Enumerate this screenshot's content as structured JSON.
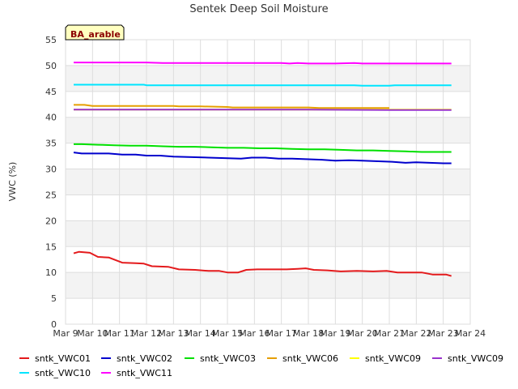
{
  "chart_data": {
    "type": "line",
    "title": "Sentek Deep Soil Moisture",
    "ylabel": "VWC (%)",
    "xlabel": "",
    "site_label": "BA_arable",
    "ylim": [
      0,
      55
    ],
    "yticks": [
      0,
      5,
      10,
      15,
      20,
      25,
      30,
      35,
      40,
      45,
      50,
      55
    ],
    "xlim": [
      9,
      24
    ],
    "xticks": [
      {
        "value": 9,
        "label": "Mar 9"
      },
      {
        "value": 10,
        "label": "Mar 10"
      },
      {
        "value": 11,
        "label": "Mar 11"
      },
      {
        "value": 12,
        "label": "Mar 12"
      },
      {
        "value": 13,
        "label": "Mar 13"
      },
      {
        "value": 14,
        "label": "Mar 14"
      },
      {
        "value": 15,
        "label": "Mar 15"
      },
      {
        "value": 16,
        "label": "Mar 16"
      },
      {
        "value": 17,
        "label": "Mar 17"
      },
      {
        "value": 18,
        "label": "Mar 18"
      },
      {
        "value": 19,
        "label": "Mar 19"
      },
      {
        "value": 20,
        "label": "Mar 20"
      },
      {
        "value": 21,
        "label": "Mar 21"
      },
      {
        "value": 22,
        "label": "Mar 22"
      },
      {
        "value": 23,
        "label": "Mar 23"
      },
      {
        "value": 24,
        "label": "Mar 24"
      }
    ],
    "grid": true,
    "legend_position": "bottom",
    "series": [
      {
        "name": "sntk_VWC01",
        "color": "#e41a1c",
        "x": [
          9.3,
          9.5,
          9.9,
          10.2,
          10.6,
          11.1,
          11.6,
          11.9,
          12.2,
          12.8,
          13.2,
          13.8,
          14.3,
          14.7,
          15.0,
          15.4,
          15.7,
          16.1,
          16.5,
          17.2,
          17.6,
          17.9,
          18.2,
          18.7,
          19.2,
          19.8,
          20.4,
          20.9,
          21.3,
          21.8,
          22.2,
          22.6,
          23.1,
          23.3
        ],
        "y": [
          13.7,
          14.0,
          13.8,
          13.0,
          12.9,
          11.9,
          11.8,
          11.7,
          11.2,
          11.1,
          10.6,
          10.5,
          10.3,
          10.3,
          10.0,
          10.0,
          10.5,
          10.6,
          10.6,
          10.6,
          10.7,
          10.8,
          10.5,
          10.4,
          10.2,
          10.3,
          10.2,
          10.3,
          10.0,
          10.0,
          10.0,
          9.6,
          9.6,
          9.3
        ]
      },
      {
        "name": "sntk_VWC02",
        "color": "#0000cd",
        "x": [
          9.3,
          9.6,
          10.0,
          10.6,
          11.1,
          11.6,
          12.0,
          12.5,
          13.0,
          13.7,
          14.3,
          14.9,
          15.5,
          15.9,
          16.4,
          16.9,
          17.4,
          17.9,
          18.5,
          19.0,
          19.5,
          20.0,
          20.6,
          21.1,
          21.6,
          22.0,
          22.5,
          23.0,
          23.3
        ],
        "y": [
          33.2,
          33.0,
          33.0,
          33.0,
          32.8,
          32.8,
          32.6,
          32.6,
          32.4,
          32.3,
          32.2,
          32.1,
          32.0,
          32.2,
          32.2,
          32.0,
          32.0,
          31.9,
          31.8,
          31.6,
          31.7,
          31.6,
          31.5,
          31.4,
          31.2,
          31.3,
          31.2,
          31.1,
          31.1
        ]
      },
      {
        "name": "sntk_VWC03",
        "color": "#00e000",
        "x": [
          9.3,
          9.6,
          10.2,
          10.8,
          11.4,
          12.0,
          12.6,
          13.2,
          13.8,
          14.4,
          15.0,
          15.6,
          16.2,
          16.8,
          17.4,
          18.0,
          18.6,
          19.2,
          19.8,
          20.4,
          21.0,
          21.6,
          22.2,
          22.8,
          23.3
        ],
        "y": [
          34.8,
          34.8,
          34.7,
          34.6,
          34.5,
          34.5,
          34.4,
          34.3,
          34.3,
          34.2,
          34.1,
          34.1,
          34.0,
          34.0,
          33.9,
          33.8,
          33.8,
          33.7,
          33.6,
          33.6,
          33.5,
          33.4,
          33.3,
          33.3,
          33.3
        ]
      },
      {
        "name": "sntk_VWC06",
        "color": "#e69f00",
        "x": [
          9.3,
          9.7,
          10.0,
          11.0,
          12.0,
          13.0,
          13.2,
          14.0,
          15.0,
          15.2,
          16.0,
          17.0,
          18.0,
          18.4,
          19.0,
          20.0,
          21.0
        ],
        "y": [
          42.4,
          42.4,
          42.2,
          42.2,
          42.2,
          42.2,
          42.1,
          42.1,
          42.0,
          41.9,
          41.9,
          41.9,
          41.9,
          41.8,
          41.8,
          41.8,
          41.8
        ]
      },
      {
        "name": "sntk_VWC09",
        "color": "#ffff00",
        "x": [
          9.3,
          12.0,
          15.0,
          18.0,
          21.0,
          23.3
        ],
        "y": [
          41.5,
          41.5,
          41.5,
          41.5,
          41.5,
          41.5
        ]
      },
      {
        "name": "sntk_VWC09",
        "color": "#9932cc",
        "x": [
          9.3,
          12.0,
          15.0,
          18.0,
          21.0,
          23.3
        ],
        "y": [
          41.5,
          41.5,
          41.5,
          41.5,
          41.4,
          41.4
        ]
      },
      {
        "name": "sntk_VWC10",
        "color": "#00e5ff",
        "x": [
          9.3,
          10.0,
          11.0,
          11.9,
          12.0,
          13.0,
          14.0,
          15.0,
          16.0,
          17.0,
          18.0,
          19.0,
          19.7,
          20.0,
          21.0,
          21.2,
          22.0,
          23.3
        ],
        "y": [
          46.3,
          46.3,
          46.3,
          46.3,
          46.2,
          46.2,
          46.2,
          46.2,
          46.2,
          46.2,
          46.2,
          46.2,
          46.2,
          46.1,
          46.1,
          46.2,
          46.2,
          46.2
        ]
      },
      {
        "name": "sntk_VWC11",
        "color": "#ff00ff",
        "x": [
          9.3,
          10.0,
          11.0,
          12.0,
          12.6,
          13.0,
          14.0,
          15.0,
          16.0,
          17.0,
          17.3,
          17.6,
          18.0,
          19.0,
          19.7,
          20.0,
          21.0,
          22.0,
          23.3
        ],
        "y": [
          50.6,
          50.6,
          50.6,
          50.6,
          50.5,
          50.5,
          50.5,
          50.5,
          50.5,
          50.5,
          50.4,
          50.5,
          50.4,
          50.4,
          50.5,
          50.4,
          50.4,
          50.4,
          50.4
        ]
      }
    ]
  }
}
